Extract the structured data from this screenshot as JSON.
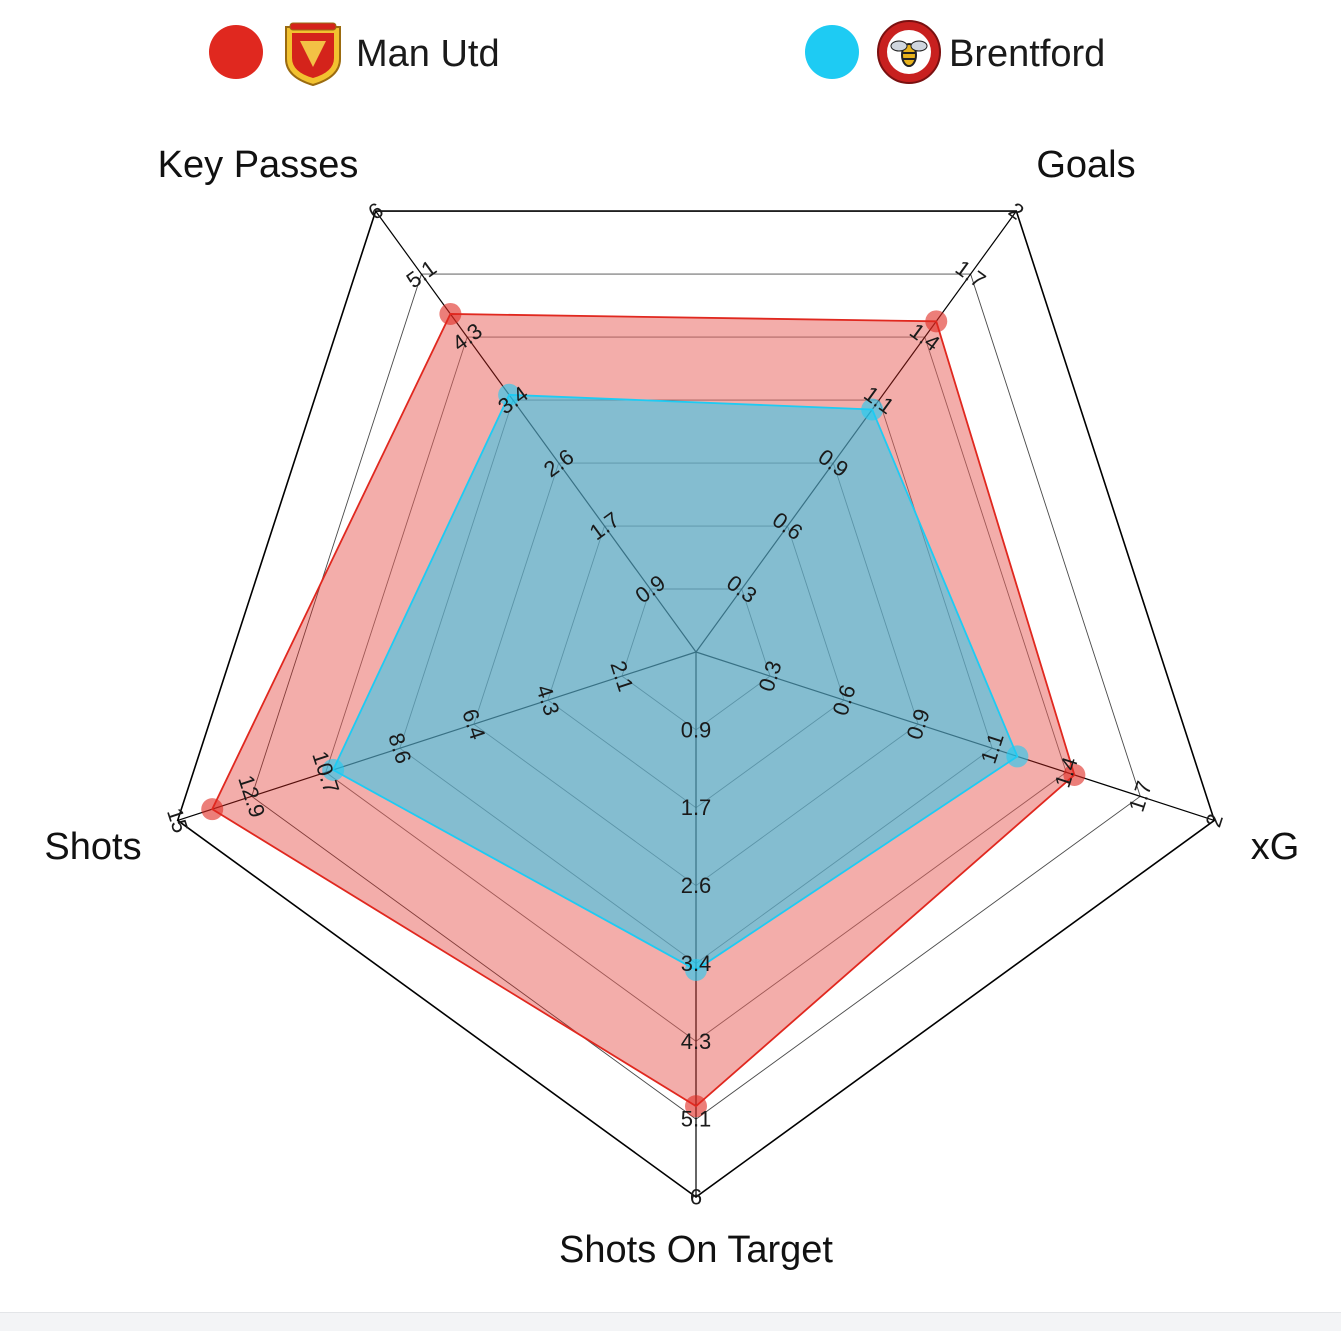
{
  "chart_data": {
    "type": "radar",
    "axes": [
      {
        "name": "Goals",
        "max": 2,
        "ticks": [
          "0.3",
          "0.6",
          "0.9",
          "1.1",
          "1.4",
          "1.7",
          "2"
        ]
      },
      {
        "name": "xG",
        "max": 2,
        "ticks": [
          "0.3",
          "0.6",
          "0.9",
          "1.1",
          "1.4",
          "1.7",
          "2"
        ]
      },
      {
        "name": "Shots On Target",
        "max": 6,
        "ticks": [
          "0.9",
          "1.7",
          "2.6",
          "3.4",
          "4.3",
          "5.1",
          "6"
        ]
      },
      {
        "name": "Shots",
        "max": 15,
        "ticks": [
          "2.1",
          "4.3",
          "6.4",
          "8.6",
          "10.7",
          "12.9",
          "15"
        ]
      },
      {
        "name": "Key Passes",
        "max": 6,
        "ticks": [
          "0.9",
          "1.7",
          "2.6",
          "3.4",
          "4.3",
          "5.1",
          "6"
        ]
      }
    ],
    "series": [
      {
        "name": "Man Utd",
        "color": "#e0281f",
        "badge": "man-utd-crest",
        "values": [
          1.5,
          1.46,
          5.0,
          14.0,
          4.6
        ]
      },
      {
        "name": "Brentford",
        "color": "#1ecbf3",
        "badge": "brentford-crest",
        "values": [
          1.1,
          1.24,
          3.5,
          10.5,
          3.5
        ]
      }
    ],
    "legend_position": "top"
  }
}
